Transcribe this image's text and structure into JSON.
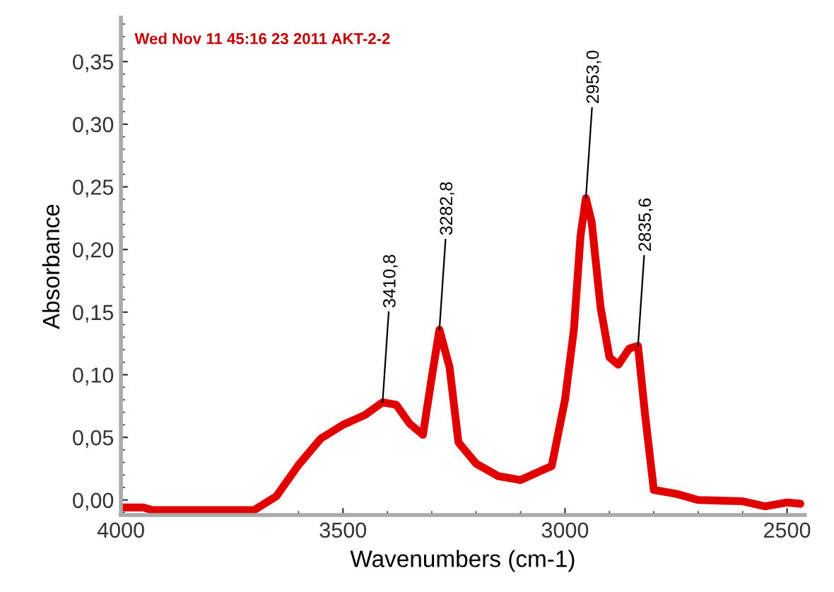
{
  "chart_data": {
    "type": "line",
    "xlabel": "Wavenumbers (cm-1)",
    "ylabel": "Absorbance",
    "xlim": [
      4000,
      2460
    ],
    "ylim": [
      -0.012,
      0.385
    ],
    "xticks": [
      4000,
      3500,
      3000,
      2500
    ],
    "yticks": [
      {
        "value": 0,
        "label": "0,00"
      },
      {
        "value": 0.05,
        "label": "0,05"
      },
      {
        "value": 0.1,
        "label": "0,10"
      },
      {
        "value": 0.15,
        "label": "0,15"
      },
      {
        "value": 0.2,
        "label": "0,20"
      },
      {
        "value": 0.25,
        "label": "0,25"
      },
      {
        "value": 0.3,
        "label": "0,30"
      },
      {
        "value": 0.35,
        "label": "0,35"
      }
    ],
    "grid": false,
    "legend": false,
    "marker": "none",
    "line_style": "solid",
    "series": [
      {
        "color": "#e00000",
        "x": [
          4000,
          3950,
          3930,
          3700,
          3650,
          3600,
          3550,
          3500,
          3450,
          3410.8,
          3380,
          3350,
          3320,
          3300,
          3282.8,
          3260,
          3240,
          3200,
          3150,
          3100,
          3050,
          3030,
          3000,
          2980,
          2965,
          2953,
          2940,
          2920,
          2900,
          2880,
          2855,
          2835.6,
          2820,
          2800,
          2750,
          2700,
          2600,
          2550,
          2500,
          2470
        ],
        "values": [
          -0.006,
          -0.006,
          -0.008,
          -0.008,
          0.003,
          0.028,
          0.049,
          0.06,
          0.068,
          0.078,
          0.076,
          0.061,
          0.052,
          0.098,
          0.136,
          0.106,
          0.046,
          0.029,
          0.019,
          0.016,
          0.024,
          0.027,
          0.08,
          0.136,
          0.211,
          0.241,
          0.222,
          0.154,
          0.114,
          0.108,
          0.121,
          0.123,
          0.069,
          0.008,
          0.005,
          0.0,
          -0.001,
          -0.005,
          -0.002,
          -0.003
        ]
      }
    ],
    "annotations": [
      {
        "text": "Wed Nov 11 45:16 23 2011 AKT-2-2"
      },
      {
        "text": "3410,8",
        "x": 3410.8,
        "y": 0.078
      },
      {
        "text": "3282,8",
        "x": 3282.8,
        "y": 0.136
      },
      {
        "text": "2953,0",
        "x": 2953,
        "y": 0.241
      },
      {
        "text": "2835,6",
        "x": 2835.6,
        "y": 0.123
      }
    ]
  }
}
